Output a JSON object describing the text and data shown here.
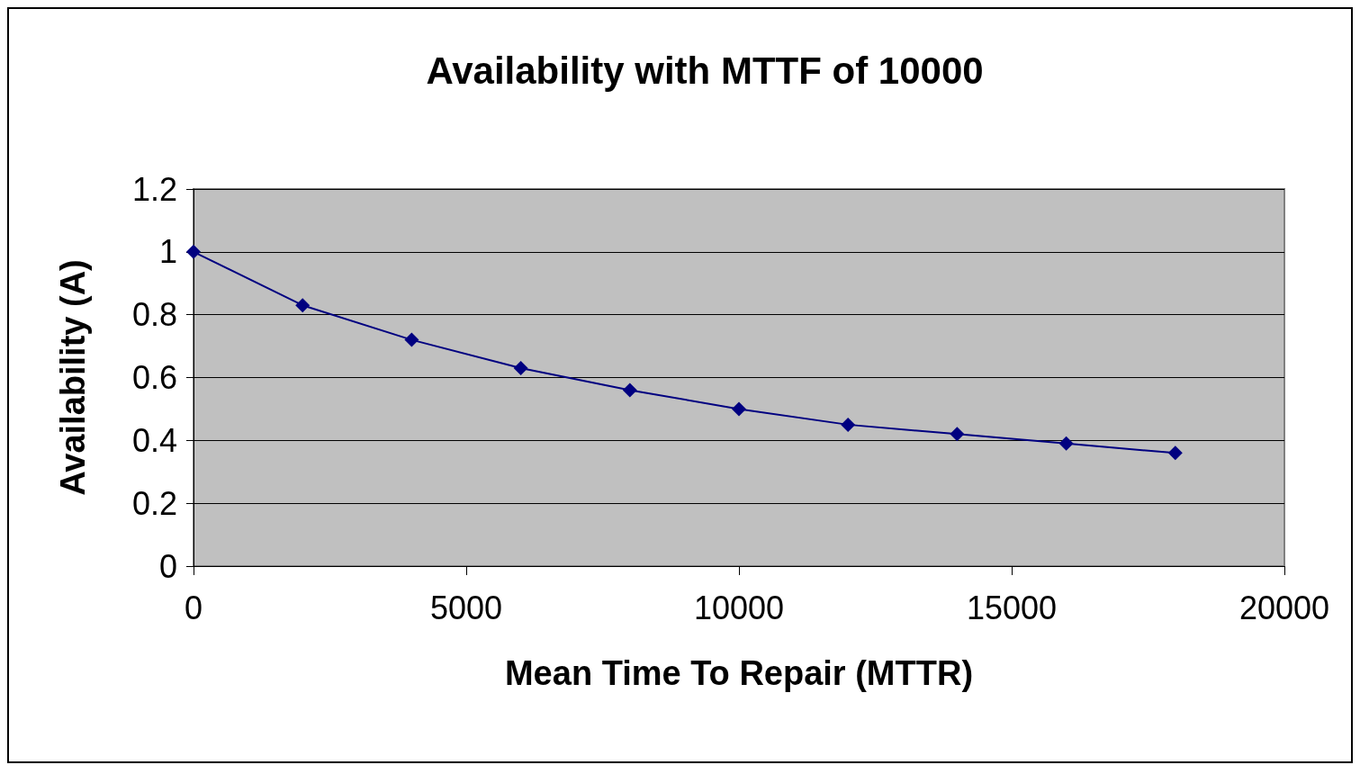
{
  "chart_data": {
    "type": "line",
    "title": "Availability with MTTF of 10000",
    "xlabel": "Mean Time To Repair (MTTR)",
    "ylabel": "Availability (A)",
    "x": [
      0,
      2000,
      4000,
      6000,
      8000,
      10000,
      12000,
      14000,
      16000,
      18000
    ],
    "series": [
      {
        "color": "#000080",
        "values": [
          1,
          0.83,
          0.72,
          0.63,
          0.56,
          0.5,
          0.45,
          0.42,
          0.39,
          0.36
        ]
      }
    ],
    "xlim": [
      0,
      20000
    ],
    "xticks": [
      0,
      5000,
      10000,
      15000,
      20000
    ],
    "ylim": [
      0,
      1.2
    ],
    "yticks": [
      0,
      0.2,
      0.4,
      0.6,
      0.8,
      1,
      1.2
    ],
    "grid": "y",
    "marker": "diamond",
    "line_style": "solid"
  }
}
